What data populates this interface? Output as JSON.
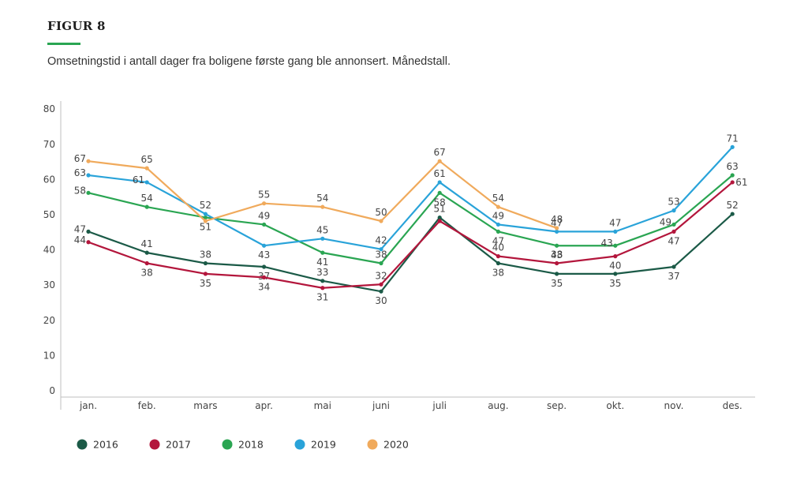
{
  "header": {
    "figure_label": "FIGUR 8",
    "subtitle": "Omsetningstid i antall dager fra boligene første gang ble annonsert. Månedstall."
  },
  "chart_data": {
    "type": "line",
    "title": "",
    "xlabel": "",
    "ylabel": "",
    "ylim": [
      0,
      80
    ],
    "yticks": [
      0,
      10,
      20,
      30,
      40,
      50,
      60,
      70,
      80
    ],
    "grid": false,
    "legend_position": "bottom-left",
    "categories": [
      "jan.",
      "feb.",
      "mars",
      "apr.",
      "mai",
      "juni",
      "juli",
      "aug.",
      "sep.",
      "okt.",
      "nov.",
      "des."
    ],
    "series": [
      {
        "name": "2016",
        "color": "#1b5a47",
        "values": [
          47,
          41,
          38,
          37,
          33,
          30,
          51,
          38,
          35,
          35,
          37,
          52
        ],
        "label_pos": [
          "left",
          "above",
          "above",
          "below",
          "above",
          "below",
          "above",
          "below",
          "below",
          "below",
          "below",
          "above"
        ]
      },
      {
        "name": "2017",
        "color": "#b3163c",
        "values": [
          44,
          38,
          35,
          34,
          31,
          32,
          50,
          40,
          38,
          40,
          47,
          61
        ],
        "label_pos": [
          "left",
          "below",
          "below",
          "below",
          "below",
          "above",
          "none",
          "above",
          "above",
          "below",
          "below",
          "right"
        ]
      },
      {
        "name": "2018",
        "color": "#2aa552",
        "values": [
          58,
          54,
          51,
          49,
          41,
          38,
          58,
          47,
          43,
          43,
          49,
          63
        ],
        "label_pos": [
          "left",
          "above",
          "below",
          "above",
          "below",
          "above",
          "below",
          "below",
          "below",
          "left",
          "left",
          "above"
        ]
      },
      {
        "name": "2019",
        "color": "#29a3d9",
        "values": [
          63,
          61,
          52,
          43,
          45,
          42,
          61,
          49,
          47,
          47,
          53,
          71
        ],
        "label_pos": [
          "left",
          "left",
          "above",
          "below",
          "above",
          "above",
          "above",
          "above",
          "above",
          "above",
          "above",
          "above"
        ]
      },
      {
        "name": "2020",
        "color": "#f0aa5c",
        "values": [
          67,
          65,
          50,
          55,
          54,
          50,
          67,
          54,
          48,
          null,
          null,
          null
        ],
        "label_pos": [
          "left",
          "above",
          "none",
          "above",
          "above",
          "above",
          "above",
          "above",
          "above",
          "none",
          "none",
          "none"
        ]
      }
    ]
  }
}
